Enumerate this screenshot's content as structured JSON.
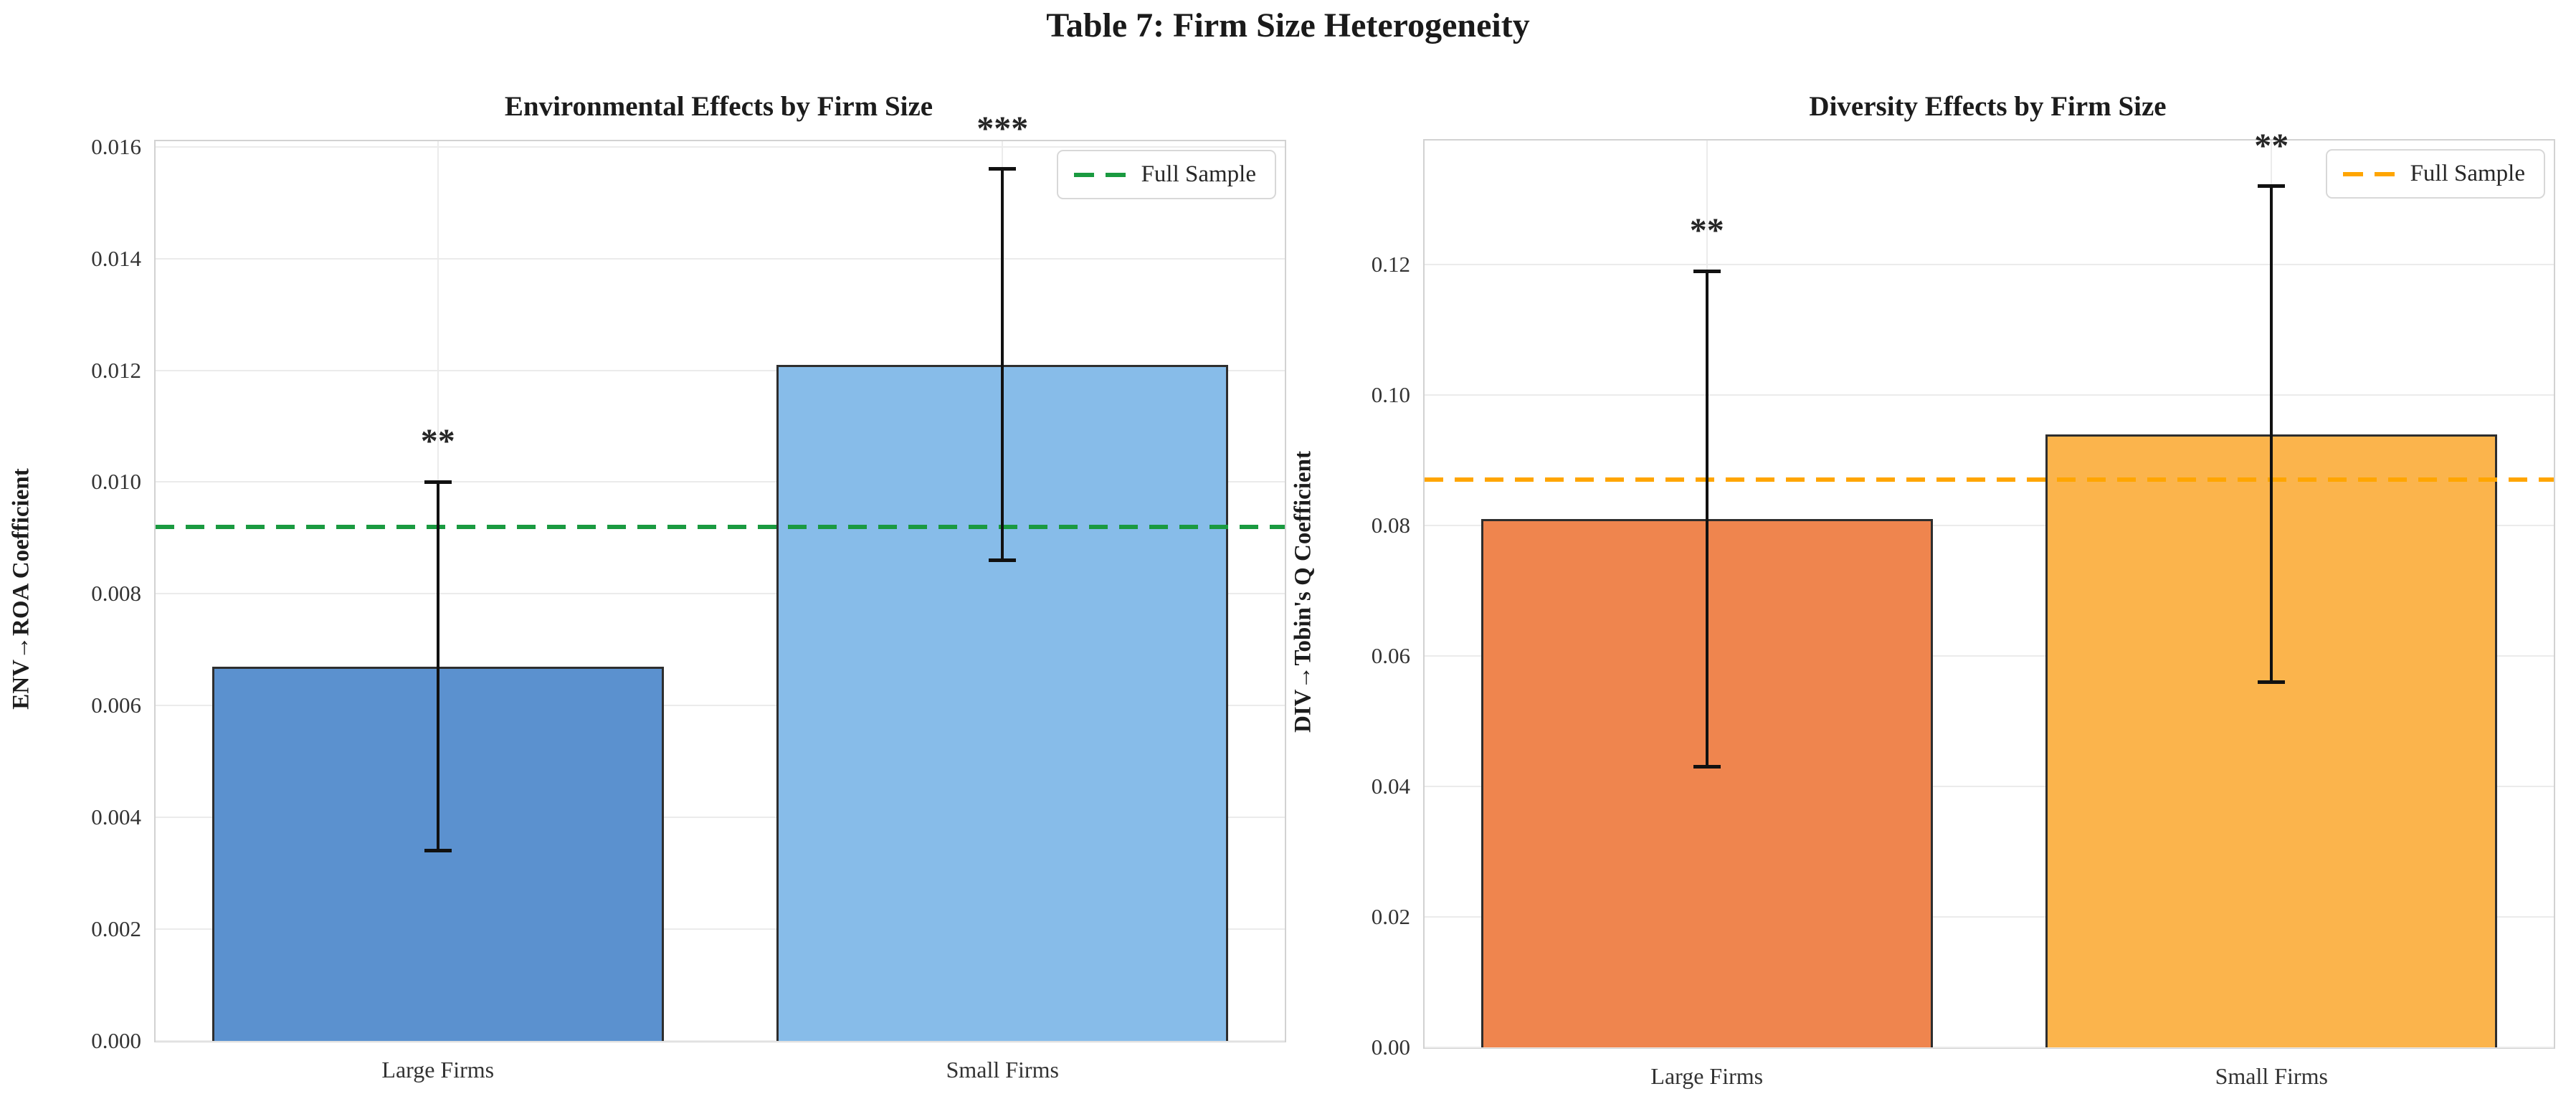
{
  "figure": {
    "title": "Table 7: Firm Size Heterogeneity",
    "background_color": "#ffffff"
  },
  "chart_data": [
    {
      "type": "bar",
      "title": "Environmental Effects by Firm Size",
      "ylabel": "ENV→ROA Coefficient",
      "categories": [
        "Large Firms",
        "Small Firms"
      ],
      "values": [
        0.0067,
        0.0121
      ],
      "error_low": [
        0.0034,
        0.0086
      ],
      "error_high": [
        0.01,
        0.0156
      ],
      "significance": [
        "**",
        "***"
      ],
      "bar_colors": [
        "#5b91cf",
        "#87bce9"
      ],
      "bar_edge_color": "#2e2e2e",
      "reference_line": {
        "value": 0.0092,
        "color": "#1a9a40",
        "style": "dashed",
        "label": "Full Sample"
      },
      "legend": {
        "label": "Full Sample",
        "position": "upper right"
      },
      "ylim": [
        0,
        0.0161
      ],
      "yticks": [
        0.0,
        0.002,
        0.004,
        0.006,
        0.008,
        0.01,
        0.012,
        0.014,
        0.016
      ],
      "ytick_labels": [
        "0.000",
        "0.002",
        "0.004",
        "0.006",
        "0.008",
        "0.010",
        "0.012",
        "0.014",
        "0.016"
      ],
      "grid": true
    },
    {
      "type": "bar",
      "title": "Diversity Effects by Firm Size",
      "ylabel": "DIV→Tobin's Q Coefficient",
      "categories": [
        "Large Firms",
        "Small Firms"
      ],
      "values": [
        0.081,
        0.094
      ],
      "error_low": [
        0.043,
        0.056
      ],
      "error_high": [
        0.119,
        0.132
      ],
      "significance": [
        "**",
        "**"
      ],
      "bar_colors": [
        "#ef854e",
        "#fbb44c"
      ],
      "bar_edge_color": "#2e2e2e",
      "reference_line": {
        "value": 0.087,
        "color": "#ffa500",
        "style": "dashed",
        "label": "Full Sample"
      },
      "legend": {
        "label": "Full Sample",
        "position": "upper right"
      },
      "ylim": [
        0,
        0.139
      ],
      "yticks": [
        0.0,
        0.02,
        0.04,
        0.06,
        0.08,
        0.1,
        0.12
      ],
      "ytick_labels": [
        "0.00",
        "0.02",
        "0.04",
        "0.06",
        "0.08",
        "0.10",
        "0.12"
      ],
      "grid": true
    }
  ]
}
